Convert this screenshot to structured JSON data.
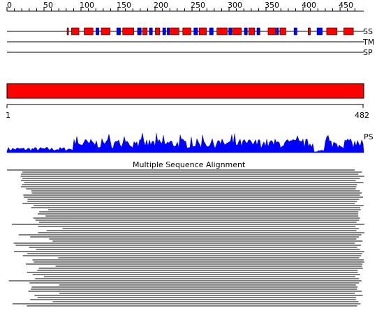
{
  "ruler": {
    "ticks": [
      "0",
      "50",
      "100",
      "150",
      "200",
      "250",
      "300",
      "350",
      "400",
      "450"
    ]
  },
  "tracks": {
    "ss_label": "SS",
    "tm_label": "TM",
    "sp_label": "SP",
    "ps_label": "PS"
  },
  "colors": {
    "helix": "#ff0000",
    "strand": "#0000ff",
    "domain": "#ff0000",
    "profile": "#0000ff",
    "line": "#000000"
  },
  "secondary_structure": {
    "length_units": "residues",
    "helices": [
      [
        82,
        84
      ],
      [
        88,
        98
      ],
      [
        105,
        117
      ],
      [
        128,
        140
      ],
      [
        157,
        172
      ],
      [
        184,
        190
      ],
      [
        201,
        207
      ],
      [
        221,
        233
      ],
      [
        238,
        249
      ],
      [
        260,
        270
      ],
      [
        284,
        298
      ],
      [
        305,
        317
      ],
      [
        327,
        335
      ],
      [
        353,
        363
      ],
      [
        369,
        377
      ],
      [
        407,
        410
      ],
      [
        432,
        446
      ],
      [
        455,
        468
      ]
    ],
    "strands": [
      [
        121,
        125
      ],
      [
        149,
        154
      ],
      [
        177,
        182
      ],
      [
        193,
        197
      ],
      [
        211,
        215
      ],
      [
        217,
        220
      ],
      [
        253,
        258
      ],
      [
        274,
        279
      ],
      [
        300,
        304
      ],
      [
        321,
        325
      ],
      [
        338,
        342
      ],
      [
        364,
        367
      ],
      [
        388,
        392
      ],
      [
        419,
        426
      ]
    ]
  },
  "domain": {
    "start_label": "1",
    "end_label": "482",
    "start": 1,
    "end": 482
  },
  "msa": {
    "title": "Multiple Sequence Alignment"
  }
}
